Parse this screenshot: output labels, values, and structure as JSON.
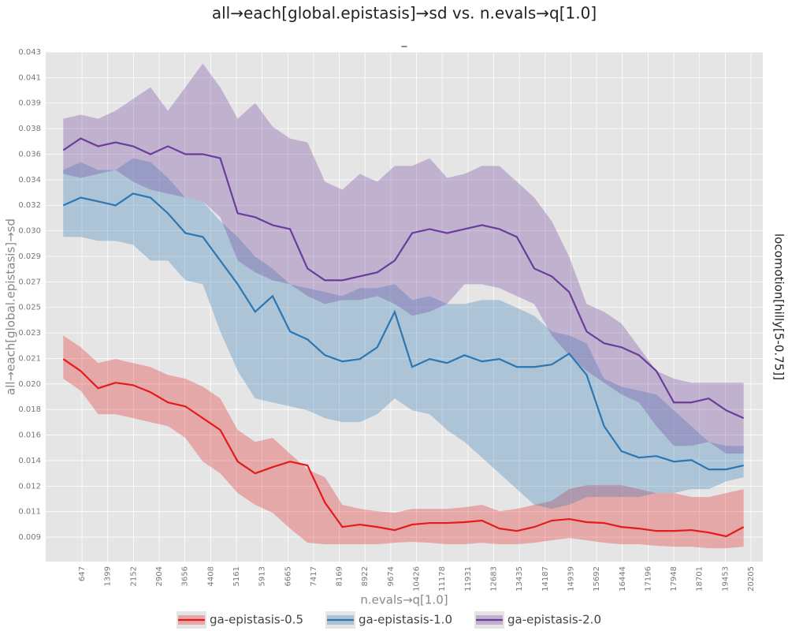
{
  "chart_data": {
    "type": "line_band",
    "title": "all→each[global.epistasis]→sd vs. n.evals→q[1.0]",
    "subtitle": "_",
    "facet_label": "locomotion[hilly[5-0.75]]",
    "xlabel": "n.evals→q[1.0]",
    "ylabel": "all→each[global.epistasis]→sd",
    "grid": true,
    "legend": "bottom",
    "x": [
      100,
      610,
      1120,
      1630,
      2140,
      2650,
      3160,
      3670,
      4180,
      4690,
      5200,
      5710,
      6220,
      6730,
      7240,
      7750,
      8260,
      8770,
      9280,
      9790,
      10300,
      10810,
      11320,
      11830,
      12340,
      12850,
      13360,
      13870,
      14380,
      14890,
      15400,
      15910,
      16420,
      16930,
      17440,
      17950,
      18460,
      18970,
      19480,
      19990
    ],
    "xlim": [
      -413,
      20550
    ],
    "xticks": [
      647,
      1399,
      2152,
      2904,
      3656,
      4408,
      5161,
      5913,
      6665,
      7417,
      8169,
      8922,
      9674,
      10426,
      11178,
      11931,
      12683,
      13435,
      14187,
      14939,
      15692,
      16444,
      17196,
      17948,
      18701,
      19453,
      20205
    ],
    "ylim": [
      0.00708,
      0.043
    ],
    "yticks": [
      {
        "value": 0.0088,
        "label": "0.009"
      },
      {
        "value": 0.0106,
        "label": "0.011"
      },
      {
        "value": 0.0124,
        "label": "0.012"
      },
      {
        "value": 0.0142,
        "label": "0.014"
      },
      {
        "value": 0.016,
        "label": "0.016"
      },
      {
        "value": 0.0178,
        "label": "0.018"
      },
      {
        "value": 0.0196,
        "label": "0.020"
      },
      {
        "value": 0.0214,
        "label": "0.021"
      },
      {
        "value": 0.0232,
        "label": "0.023"
      },
      {
        "value": 0.025,
        "label": "0.025"
      },
      {
        "value": 0.0268,
        "label": "0.027"
      },
      {
        "value": 0.0286,
        "label": "0.029"
      },
      {
        "value": 0.0304,
        "label": "0.030"
      },
      {
        "value": 0.0322,
        "label": "0.032"
      },
      {
        "value": 0.034,
        "label": "0.034"
      },
      {
        "value": 0.0358,
        "label": "0.036"
      },
      {
        "value": 0.0376,
        "label": "0.038"
      },
      {
        "value": 0.0394,
        "label": "0.039"
      },
      {
        "value": 0.0412,
        "label": "0.041"
      },
      {
        "value": 0.043,
        "label": "0.043"
      }
    ],
    "series": [
      {
        "name": "ga-epistasis-0.5",
        "color": "#e41a1c",
        "values": [
          0.02136,
          0.02052,
          0.0193,
          0.01969,
          0.01952,
          0.01902,
          0.0183,
          0.01802,
          0.01719,
          0.01636,
          0.01413,
          0.0133,
          0.01374,
          0.01413,
          0.01386,
          0.01124,
          0.00952,
          0.00969,
          0.00952,
          0.0093,
          0.00969,
          0.0098,
          0.0098,
          0.00986,
          0.00997,
          0.00941,
          0.00924,
          0.00952,
          0.00997,
          0.01008,
          0.00986,
          0.0098,
          0.00952,
          0.00941,
          0.00924,
          0.00924,
          0.0093,
          0.00913,
          0.00886,
          0.00952
        ],
        "upper": [
          0.02302,
          0.02219,
          0.02108,
          0.02136,
          0.02108,
          0.0208,
          0.02024,
          0.01997,
          0.01941,
          0.01858,
          0.01636,
          0.01552,
          0.0158,
          0.01469,
          0.01358,
          0.01302,
          0.01108,
          0.0108,
          0.01063,
          0.01052,
          0.0108,
          0.0108,
          0.0108,
          0.01091,
          0.01108,
          0.01063,
          0.0108,
          0.01108,
          0.01136,
          0.01219,
          0.01247,
          0.01247,
          0.01247,
          0.01219,
          0.01191,
          0.01191,
          0.01163,
          0.01163,
          0.01191,
          0.01219
        ],
        "lower": [
          0.01997,
          0.01913,
          0.01747,
          0.01747,
          0.01719,
          0.01691,
          0.01663,
          0.0158,
          0.01413,
          0.0133,
          0.01191,
          0.01108,
          0.01052,
          0.00941,
          0.00841,
          0.0083,
          0.0083,
          0.0083,
          0.0083,
          0.00841,
          0.00847,
          0.00841,
          0.0083,
          0.0083,
          0.00841,
          0.0083,
          0.0083,
          0.00841,
          0.00858,
          0.00874,
          0.00858,
          0.00841,
          0.0083,
          0.0083,
          0.00819,
          0.00813,
          0.00813,
          0.00802,
          0.00802,
          0.00813
        ]
      },
      {
        "name": "ga-epistasis-1.0",
        "color": "#2a77b4",
        "values": [
          0.03219,
          0.03274,
          0.03247,
          0.03219,
          0.03302,
          0.03274,
          0.03163,
          0.03024,
          0.02997,
          0.0283,
          0.02663,
          0.02469,
          0.0258,
          0.0233,
          0.02274,
          0.02163,
          0.02119,
          0.02136,
          0.02219,
          0.02469,
          0.0208,
          0.02136,
          0.02108,
          0.02163,
          0.02119,
          0.02136,
          0.0208,
          0.0208,
          0.02097,
          0.02174,
          0.02024,
          0.01663,
          0.01486,
          0.01441,
          0.01452,
          0.01413,
          0.01424,
          0.01358,
          0.01358,
          0.01386
        ],
        "upper": [
          0.03469,
          0.03524,
          0.03469,
          0.03469,
          0.03552,
          0.03524,
          0.03413,
          0.03274,
          0.03247,
          0.03108,
          0.02997,
          0.02858,
          0.02774,
          0.02663,
          0.02636,
          0.02608,
          0.0258,
          0.02636,
          0.02636,
          0.02663,
          0.02552,
          0.0258,
          0.02524,
          0.02524,
          0.02552,
          0.02552,
          0.02497,
          0.02441,
          0.0233,
          0.02302,
          0.02247,
          0.01997,
          0.01941,
          0.01913,
          0.01886,
          0.01774,
          0.01663,
          0.01552,
          0.01524,
          0.01524
        ],
        "lower": [
          0.02997,
          0.02997,
          0.02969,
          0.02969,
          0.02941,
          0.0283,
          0.0283,
          0.02691,
          0.02663,
          0.0233,
          0.02052,
          0.01858,
          0.0183,
          0.01802,
          0.01774,
          0.01719,
          0.01691,
          0.01691,
          0.01747,
          0.01858,
          0.01774,
          0.01747,
          0.01636,
          0.01552,
          0.01441,
          0.0133,
          0.01219,
          0.01108,
          0.0108,
          0.01108,
          0.01163,
          0.01163,
          0.01163,
          0.01163,
          0.01191,
          0.01191,
          0.01219,
          0.01219,
          0.01274,
          0.01302
        ]
      },
      {
        "name": "ga-epistasis-2.0",
        "color": "#6a3d9a",
        "values": [
          0.03608,
          0.03691,
          0.03636,
          0.03663,
          0.03636,
          0.0358,
          0.03636,
          0.0358,
          0.0358,
          0.03552,
          0.03163,
          0.03136,
          0.0308,
          0.03052,
          0.02774,
          0.02691,
          0.02691,
          0.02719,
          0.02747,
          0.0283,
          0.03024,
          0.03052,
          0.03024,
          0.03052,
          0.0308,
          0.03052,
          0.02997,
          0.02774,
          0.02719,
          0.02608,
          0.0233,
          0.02247,
          0.02219,
          0.02163,
          0.02052,
          0.0183,
          0.0183,
          0.01858,
          0.01774,
          0.01719
        ],
        "upper": [
          0.0383,
          0.03858,
          0.0383,
          0.03886,
          0.03969,
          0.04052,
          0.03886,
          0.04052,
          0.04219,
          0.04052,
          0.0383,
          0.03941,
          0.03774,
          0.03691,
          0.03663,
          0.03386,
          0.0333,
          0.03441,
          0.03386,
          0.03497,
          0.03497,
          0.03552,
          0.03413,
          0.03441,
          0.03497,
          0.03497,
          0.03386,
          0.03274,
          0.03108,
          0.02858,
          0.02524,
          0.02469,
          0.02386,
          0.02219,
          0.02052,
          0.01997,
          0.01969,
          0.01969,
          0.01969,
          0.01969
        ],
        "lower": [
          0.03441,
          0.03413,
          0.03441,
          0.03469,
          0.03386,
          0.0333,
          0.03302,
          0.03274,
          0.03247,
          0.03136,
          0.0283,
          0.02747,
          0.02691,
          0.02663,
          0.0258,
          0.02524,
          0.02552,
          0.02552,
          0.0258,
          0.02524,
          0.02441,
          0.02469,
          0.02524,
          0.02663,
          0.02663,
          0.02636,
          0.0258,
          0.02524,
          0.02302,
          0.02163,
          0.02052,
          0.01969,
          0.01886,
          0.0183,
          0.01663,
          0.01524,
          0.01524,
          0.01552,
          0.01469,
          0.01469
        ]
      }
    ]
  }
}
